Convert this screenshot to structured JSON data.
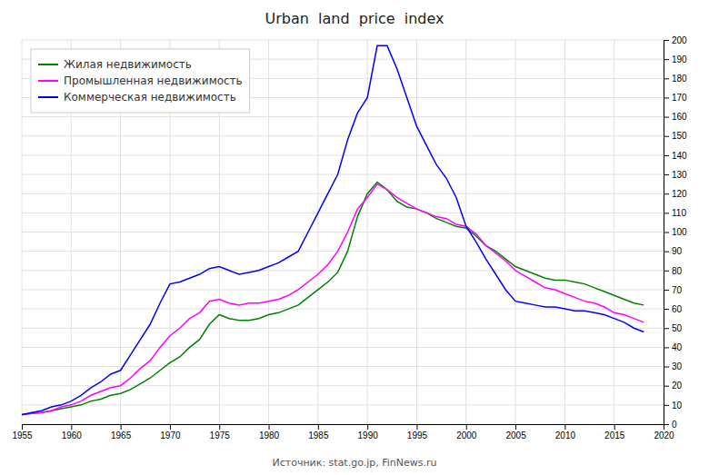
{
  "chart_data": {
    "type": "line",
    "title": "Urban  land  price  index",
    "source": "Источник: stat.go.jp, FinNews.ru",
    "x": [
      1955,
      1956,
      1957,
      1958,
      1959,
      1960,
      1961,
      1962,
      1963,
      1964,
      1965,
      1966,
      1967,
      1968,
      1969,
      1970,
      1971,
      1972,
      1973,
      1974,
      1975,
      1976,
      1977,
      1978,
      1979,
      1980,
      1981,
      1982,
      1983,
      1984,
      1985,
      1986,
      1987,
      1988,
      1989,
      1990,
      1991,
      1992,
      1993,
      1994,
      1995,
      1996,
      1997,
      1998,
      1999,
      2000,
      2001,
      2002,
      2003,
      2004,
      2005,
      2006,
      2007,
      2008,
      2009,
      2010,
      2011,
      2012,
      2013,
      2014,
      2015,
      2016,
      2017,
      2018
    ],
    "series": [
      {
        "name": "Жилая недвижимость",
        "color": "#008000",
        "values": [
          5,
          5.5,
          6,
          7,
          8,
          9,
          10,
          12,
          13,
          15,
          16,
          18,
          21,
          24,
          28,
          32,
          35,
          40,
          44,
          52,
          57,
          55,
          54,
          54,
          55,
          57,
          58,
          60,
          62,
          66,
          70,
          74,
          79,
          90,
          108,
          120,
          126,
          122,
          116,
          113,
          112,
          110,
          107,
          105,
          103,
          102,
          98,
          93,
          90,
          86,
          82,
          80,
          78,
          76,
          75,
          75,
          74,
          73,
          71,
          69,
          67,
          65,
          63,
          62
        ]
      },
      {
        "name": "Промышленная недвижимость",
        "color": "#ff00ff",
        "values": [
          5,
          5.5,
          6,
          7,
          9,
          10,
          12,
          15,
          17,
          19,
          20,
          24,
          29,
          33,
          40,
          46,
          50,
          55,
          58,
          64,
          65,
          63,
          62,
          63,
          63,
          64,
          65,
          67,
          70,
          74,
          78,
          83,
          90,
          100,
          112,
          118,
          125,
          122,
          118,
          115,
          112,
          110,
          108,
          107,
          104,
          103,
          99,
          93,
          89,
          85,
          80,
          77,
          74,
          71,
          70,
          68,
          66,
          64,
          63,
          61,
          58,
          57,
          55,
          53
        ]
      },
      {
        "name": "Коммерческая недвижимость",
        "color": "#0000ff",
        "values": [
          5,
          6,
          7,
          9,
          10,
          12,
          15,
          19,
          22,
          26,
          28,
          36,
          44,
          52,
          63,
          73,
          74,
          76,
          78,
          81,
          82,
          80,
          78,
          79,
          80,
          82,
          84,
          87,
          90,
          100,
          110,
          120,
          130,
          148,
          162,
          170,
          197,
          197,
          185,
          170,
          155,
          145,
          135,
          128,
          118,
          103,
          95,
          86,
          78,
          70,
          64,
          63,
          62,
          61,
          61,
          60,
          59,
          59,
          58,
          57,
          55,
          53,
          50,
          48
        ]
      }
    ],
    "xlim": [
      1955,
      2020
    ],
    "xticks": [
      1955,
      1960,
      1965,
      1970,
      1975,
      1980,
      1985,
      1990,
      1995,
      2000,
      2005,
      2010,
      2015,
      2020
    ],
    "ylim": [
      0,
      200
    ],
    "yticks": [
      0,
      10,
      20,
      30,
      40,
      50,
      60,
      70,
      80,
      90,
      100,
      110,
      120,
      130,
      140,
      150,
      160,
      170,
      180,
      190,
      200
    ],
    "grid": true,
    "legend": "upper left"
  }
}
